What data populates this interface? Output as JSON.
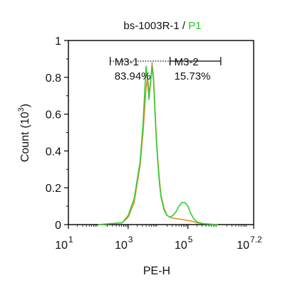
{
  "chart_data": {
    "type": "line",
    "title": {
      "sample": "bs-1003R-1",
      "separator": " / ",
      "gate": "P1",
      "gate_color": "#22cc22"
    },
    "xlabel": "PE-H",
    "ylabel_main": "Count",
    "ylabel_paren_open": "(10",
    "ylabel_exp": "3",
    "ylabel_paren_close": ")",
    "x_scale": "log10",
    "xlim_log10": [
      1,
      7.2
    ],
    "ylim": [
      0,
      1
    ],
    "x_ticks": [
      {
        "base": "10",
        "exp": "1",
        "log10": 1
      },
      {
        "base": "10",
        "exp": "3",
        "log10": 3
      },
      {
        "base": "10",
        "exp": "5",
        "log10": 5
      },
      {
        "base": "10",
        "exp": "7.2",
        "log10": 7.2
      }
    ],
    "y_ticks": [
      {
        "label": "0",
        "value": 0
      },
      {
        "label": "0.2",
        "value": 0.2
      },
      {
        "label": "0.4",
        "value": 0.4
      },
      {
        "label": "0.6",
        "value": 0.6
      },
      {
        "label": "0.8",
        "value": 0.8
      },
      {
        "label": "1",
        "value": 1
      }
    ],
    "grid": false,
    "series": [
      {
        "color": "#ee8833",
        "x_log10": [
          2.0,
          2.8,
          3.0,
          3.2,
          3.4,
          3.5,
          3.6,
          3.65,
          3.7,
          3.75,
          3.8,
          3.85,
          3.9,
          3.95,
          4.0,
          4.05,
          4.1,
          4.2,
          4.3,
          4.4,
          4.5,
          4.7,
          4.9,
          5.1,
          5.3,
          5.5,
          6.0
        ],
        "values": [
          0,
          0.01,
          0.04,
          0.12,
          0.32,
          0.5,
          0.74,
          0.8,
          0.72,
          0.76,
          0.88,
          0.8,
          0.62,
          0.46,
          0.34,
          0.24,
          0.16,
          0.09,
          0.05,
          0.04,
          0.035,
          0.03,
          0.025,
          0.02,
          0.01,
          0.005,
          0
        ]
      },
      {
        "color": "#33cc33",
        "x_log10": [
          2.0,
          2.8,
          3.0,
          3.2,
          3.4,
          3.5,
          3.6,
          3.65,
          3.7,
          3.75,
          3.8,
          3.85,
          3.9,
          3.95,
          4.0,
          4.05,
          4.1,
          4.2,
          4.3,
          4.4,
          4.5,
          4.6,
          4.7,
          4.8,
          4.9,
          5.0,
          5.1,
          5.2,
          5.3,
          5.5,
          6.0
        ],
        "values": [
          0,
          0.01,
          0.05,
          0.14,
          0.34,
          0.55,
          0.86,
          0.78,
          0.68,
          0.78,
          0.86,
          0.78,
          0.6,
          0.44,
          0.32,
          0.22,
          0.15,
          0.08,
          0.05,
          0.04,
          0.05,
          0.07,
          0.1,
          0.12,
          0.12,
          0.1,
          0.06,
          0.03,
          0.015,
          0.005,
          0
        ]
      }
    ],
    "gates": [
      {
        "name": "M3-1",
        "percent": "83.94%",
        "start_log10": 2.4,
        "end_log10": 4.4,
        "line_style": "dotted"
      },
      {
        "name": "M3-2",
        "percent": "15.73%",
        "start_log10": 4.4,
        "end_log10": 6.1,
        "line_style": "solid"
      }
    ]
  }
}
